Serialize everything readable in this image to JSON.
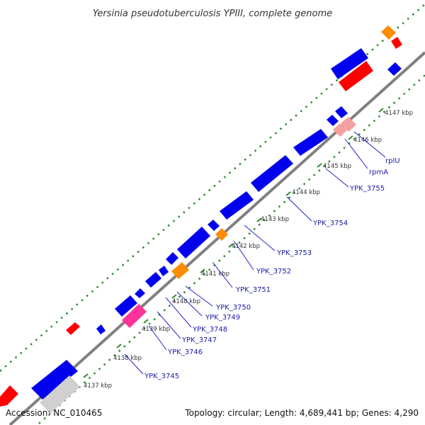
{
  "title": "Yersinia pseudotuberculosis YPIII, complete genome",
  "accession_text": "Accession: NC_010465",
  "summary_text": "Topology: circular; Length: 4,689,441 bp; Genes: 4,290",
  "colors": {
    "backbone": "#808080",
    "tick_dots": "#2e8b2e",
    "cds": "#0000ee",
    "trna": "#ff0000",
    "rrna": "#ff8c00",
    "misc": "#ff3399",
    "pseudo": "#d0d0d0",
    "pink_feature": "#f4a0a0",
    "label_text": "#1a1aa8",
    "leader_line": "#2222cc"
  },
  "kbp_labels": [
    "4137 kbp",
    "4138 kbp",
    "4139 kbp",
    "4140 kbp",
    "4141 kbp",
    "4142 kbp",
    "4143 kbp",
    "4144 kbp",
    "4145 kbp",
    "4146 kbp",
    "4147 kbp"
  ],
  "gene_labels": [
    "YPK_3745",
    "YPK_3746",
    "YPK_3747",
    "YPK_3748",
    "YPK_3749",
    "YPK_3750",
    "YPK_3751",
    "YPK_3752",
    "YPK_3753",
    "YPK_3754",
    "YPK_3755",
    "rpmA",
    "rplU"
  ]
}
